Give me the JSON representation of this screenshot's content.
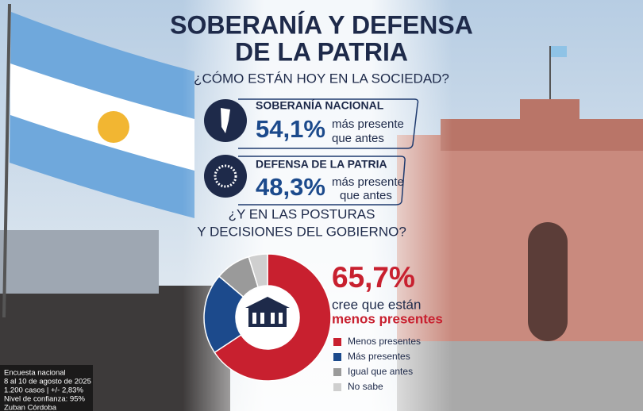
{
  "header": {
    "title_lines": [
      "SOBERANÍA Y DEFENSA",
      "DE LA PATRIA"
    ],
    "subtitle": "¿CÓMO ESTÁN HOY EN LA SOCIEDAD?"
  },
  "indicators": [
    {
      "label": "SOBERANÍA NACIONAL",
      "value": "54,1%",
      "text_lines": [
        "más presente",
        "que antes"
      ]
    },
    {
      "label": "DEFENSA DE LA PATRIA",
      "value": "48,3%",
      "text_lines": [
        "más presente",
        "que antes"
      ]
    }
  ],
  "question_lines": [
    "¿Y EN LAS POSTURAS",
    "Y DECISIONES DEL GOBIERNO?"
  ],
  "chart_data": {
    "type": "donut",
    "categories": [
      "Menos presentes",
      "Más presentes",
      "Igual que antes",
      "No sabe"
    ],
    "values": [
      65.7,
      20.5,
      9.0,
      4.8
    ],
    "value_labels": [
      "65,7%",
      null,
      null,
      null
    ],
    "colors": [
      "#c8202f",
      "#1c4a8c",
      "#9a9a9a",
      "#cfcfcf"
    ],
    "highlight_lines": [
      "cree que están",
      "menos presentes"
    ]
  },
  "footer": [
    "Encuesta nacional",
    "8 al 10 de agosto de 2025",
    "1.200 casos | +/- 2,83%",
    "Nivel de confianza: 95%",
    "Zuban Córdoba"
  ]
}
